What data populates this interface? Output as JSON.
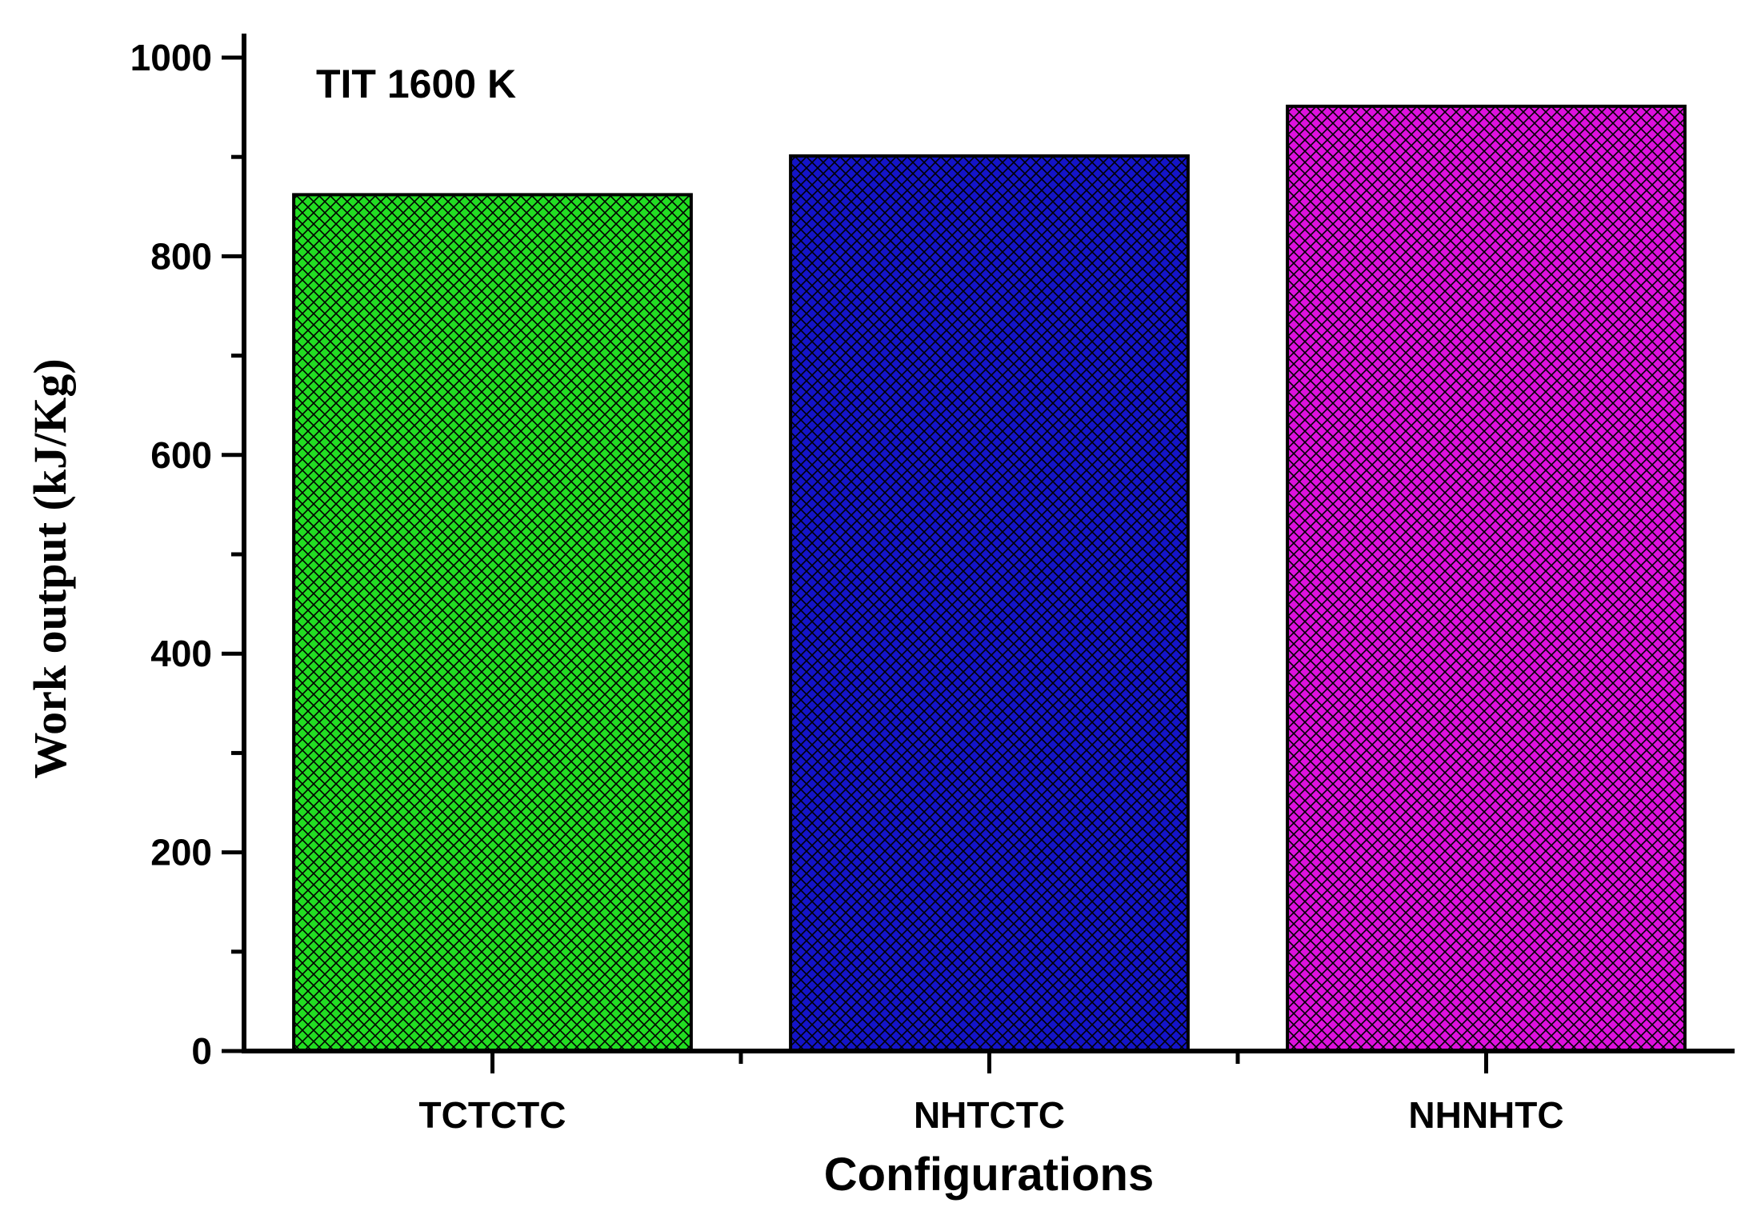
{
  "chart_data": {
    "type": "bar",
    "categories": [
      "TCTCTC",
      "NHTCTC",
      "NHNHTC"
    ],
    "values": [
      862,
      901,
      951
    ],
    "colors": [
      "#22dd22",
      "#1414c8",
      "#dd11dd"
    ],
    "pattern": "crosshatch",
    "annotation": "TIT 1600 K",
    "xlabel": "Configurations",
    "ylabel": "Work output (kJ/Kg)",
    "ylim": [
      0,
      1000
    ],
    "yticks": [
      0,
      200,
      400,
      600,
      800,
      1000
    ],
    "grid": false,
    "legend": "none"
  }
}
